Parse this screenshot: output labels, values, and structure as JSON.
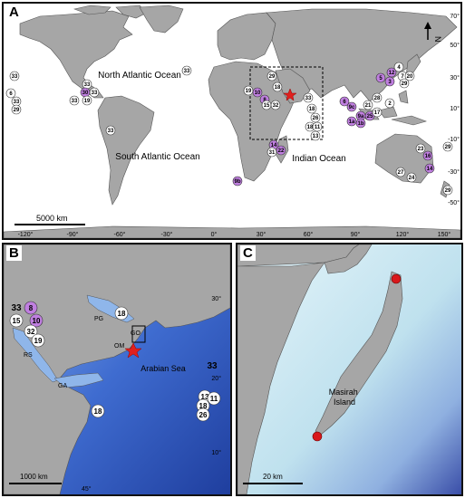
{
  "panelA": {
    "label": "A",
    "oceans": [
      "North Atlantic Ocean",
      "South Atlantic Ocean",
      "Indian Ocean"
    ],
    "scale_label": "5000 km",
    "lat_ticks": [
      "70°",
      "50°",
      "30°",
      "10°",
      "-10°",
      "-30°",
      "-50°"
    ],
    "lon_ticks": [
      "-120°",
      "-90°",
      "-60°",
      "-30°",
      "0°",
      "30°",
      "60°",
      "90°",
      "120°",
      "150°"
    ],
    "north_label": "N",
    "sites": [
      {
        "label": "33",
        "type": "plain"
      },
      {
        "label": "6",
        "type": "plain"
      },
      {
        "label": "33",
        "type": "plain"
      },
      {
        "label": "29",
        "type": "plain"
      },
      {
        "label": "33",
        "type": "plain"
      },
      {
        "label": "30",
        "type": "highlight"
      },
      {
        "label": "33",
        "type": "plain"
      },
      {
        "label": "33",
        "type": "plain"
      },
      {
        "label": "19",
        "type": "plain"
      },
      {
        "label": "33",
        "type": "plain"
      },
      {
        "label": "33",
        "type": "plain"
      },
      {
        "label": "29",
        "type": "plain"
      },
      {
        "label": "18",
        "type": "plain"
      },
      {
        "label": "19",
        "type": "plain"
      },
      {
        "label": "10",
        "type": "highlight"
      },
      {
        "label": "8",
        "type": "highlight"
      },
      {
        "label": "15",
        "type": "plain"
      },
      {
        "label": "32",
        "type": "plain"
      },
      {
        "label": "33",
        "type": "plain"
      },
      {
        "label": "18",
        "type": "plain"
      },
      {
        "label": "26",
        "type": "plain"
      },
      {
        "label": "18",
        "type": "plain"
      },
      {
        "label": "11",
        "type": "plain"
      },
      {
        "label": "13",
        "type": "plain"
      },
      {
        "label": "14",
        "type": "highlight"
      },
      {
        "label": "31",
        "type": "plain"
      },
      {
        "label": "22",
        "type": "highlight"
      },
      {
        "label": "9b",
        "type": "highlight"
      },
      {
        "label": "4",
        "type": "plain"
      },
      {
        "label": "12",
        "type": "highlight"
      },
      {
        "label": "5",
        "type": "highlight"
      },
      {
        "label": "3",
        "type": "highlight"
      },
      {
        "label": "7",
        "type": "plain"
      },
      {
        "label": "20",
        "type": "plain"
      },
      {
        "label": "29",
        "type": "plain"
      },
      {
        "label": "6",
        "type": "highlight"
      },
      {
        "label": "9c",
        "type": "highlight"
      },
      {
        "label": "28",
        "type": "plain"
      },
      {
        "label": "21",
        "type": "plain"
      },
      {
        "label": "9a",
        "type": "highlight"
      },
      {
        "label": "25",
        "type": "highlight"
      },
      {
        "label": "1a",
        "type": "highlight"
      },
      {
        "label": "1b",
        "type": "highlight"
      },
      {
        "label": "17",
        "type": "plain"
      },
      {
        "label": "2",
        "type": "plain"
      },
      {
        "label": "23",
        "type": "plain"
      },
      {
        "label": "16",
        "type": "highlight"
      },
      {
        "label": "14",
        "type": "highlight"
      },
      {
        "label": "29",
        "type": "plain"
      },
      {
        "label": "27",
        "type": "plain"
      },
      {
        "label": "24",
        "type": "plain"
      },
      {
        "label": "29",
        "type": "plain"
      }
    ]
  },
  "panelB": {
    "label": "B",
    "sea_labels": [
      "Arabian Sea",
      "PG",
      "GO",
      "RS",
      "GA",
      "OM"
    ],
    "scale_label": "1000 km",
    "lat_ticks": [
      "30°",
      "20°",
      "10°"
    ],
    "lon_ticks": [
      "45°"
    ],
    "sites": [
      {
        "label": "33",
        "type": "bare"
      },
      {
        "label": "8",
        "type": "highlight"
      },
      {
        "label": "15",
        "type": "plain"
      },
      {
        "label": "10",
        "type": "highlight"
      },
      {
        "label": "32",
        "type": "plain"
      },
      {
        "label": "19",
        "type": "plain"
      },
      {
        "label": "18",
        "type": "plain"
      },
      {
        "label": "33",
        "type": "bare"
      },
      {
        "label": "13",
        "type": "plain"
      },
      {
        "label": "18",
        "type": "plain"
      },
      {
        "label": "11",
        "type": "plain"
      },
      {
        "label": "26",
        "type": "plain"
      },
      {
        "label": "18",
        "type": "plain"
      }
    ]
  },
  "panelC": {
    "label": "C",
    "island_label": "Masirah\nIsland",
    "scale_label": "20 km"
  },
  "colors": {
    "land": "#a6a6a6",
    "highlight": "#c07fe0",
    "star": "#e0201e",
    "sea_deep": "#2c4fb8",
    "sea_shallow": "#d8eef6"
  }
}
